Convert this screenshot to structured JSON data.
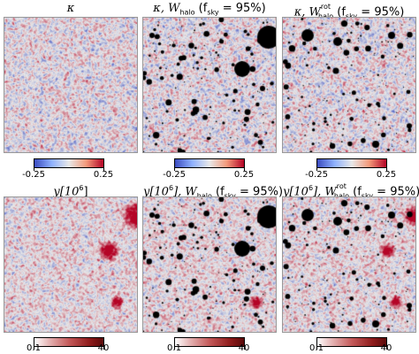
{
  "row1": {
    "titles": {
      "p1_main": "κ",
      "p2_main": "κ,  W",
      "p2_sub": "halo",
      "p2_fsky": " (f",
      "p2_fsky_sub": "sky",
      "p2_end": " = 95%)",
      "p3_main": "κ,  W",
      "p3_sup": "rot",
      "p3_sub": "halo",
      "p3_fsky": " (f",
      "p3_fsky_sub": "sky",
      "p3_end": " = 95%)"
    },
    "colorbar": {
      "min_label": "-0.25",
      "max_label": "0.25",
      "type": "diverging"
    }
  },
  "row2": {
    "titles": {
      "p1_main": "y[10",
      "p1_sup": "6",
      "p1_end": "]",
      "p2_main": "y[10",
      "p2_sup": "6",
      "p2_mid": "],  W",
      "p2_sub": "halo",
      "p2_fsky": " (f",
      "p2_fsky_sub": "sky",
      "p2_end": " = 95%)",
      "p3_main": "y[10",
      "p3_sup": "6",
      "p3_mid": "],  W",
      "p3_supr": "rot",
      "p3_sub": "halo",
      "p3_fsky": " (f",
      "p3_fsky_sub": "sky",
      "p3_end": " = 95%)"
    },
    "colorbar": {
      "min_label": "0.1",
      "max_label": "40",
      "type": "sequential"
    }
  },
  "colors": {
    "map_low": "#3b4cc0",
    "map_mid": "#e8e8e8",
    "map_high": "#b40426",
    "mask": "#000000",
    "source": "#d7301f"
  }
}
